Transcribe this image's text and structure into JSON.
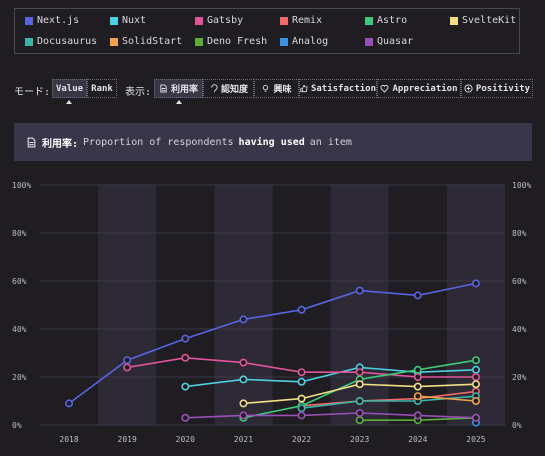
{
  "legend": [
    {
      "name": "Next.js",
      "color": "#5964e0"
    },
    {
      "name": "Nuxt",
      "color": "#4fd0e0"
    },
    {
      "name": "Gatsby",
      "color": "#e0559a"
    },
    {
      "name": "Remix",
      "color": "#ef6b6b"
    },
    {
      "name": "Astro",
      "color": "#3ec97b"
    },
    {
      "name": "SvelteKit",
      "color": "#f2df86"
    },
    {
      "name": "Docusaurus",
      "color": "#3bb5a8"
    },
    {
      "name": "SolidStart",
      "color": "#f0a348"
    },
    {
      "name": "Deno Fresh",
      "color": "#5cae3a"
    },
    {
      "name": "Analog",
      "color": "#3a8fe0"
    },
    {
      "name": "Quasar",
      "color": "#9a4fb5"
    }
  ],
  "controls": {
    "mode_label": "モード:",
    "value_label": "Value",
    "rank_label": "Rank",
    "display_label": "表示:",
    "usage_label": "利用率",
    "awareness_label": "認知度",
    "interest_label": "興味",
    "satisfaction_label": "Satisfaction",
    "appreciation_label": "Appreciation",
    "positivity_label": "Positivity"
  },
  "info": {
    "term": "利用率:",
    "text_before": "Proportion of respondents",
    "text_bold": "having used",
    "text_after": "an item"
  },
  "chart_data": {
    "type": "line",
    "x": [
      "2018",
      "2019",
      "2020",
      "2021",
      "2022",
      "2023",
      "2024",
      "2025"
    ],
    "y_ticks": [
      "100%",
      "80%",
      "60%",
      "40%",
      "20%",
      "0%"
    ],
    "ylim": [
      0,
      100
    ],
    "series": [
      {
        "name": "Next.js",
        "color": "#5964e0",
        "values": [
          9,
          27,
          36,
          44,
          48,
          56,
          54,
          59
        ]
      },
      {
        "name": "Nuxt",
        "color": "#4fd0e0",
        "values": [
          null,
          null,
          16,
          19,
          18,
          24,
          22,
          23
        ]
      },
      {
        "name": "Gatsby",
        "color": "#e0559a",
        "values": [
          null,
          24,
          28,
          26,
          22,
          22,
          20,
          20
        ]
      },
      {
        "name": "Remix",
        "color": "#ef6b6b",
        "values": [
          null,
          null,
          null,
          null,
          8,
          10,
          11,
          14
        ]
      },
      {
        "name": "Astro",
        "color": "#3ec97b",
        "values": [
          null,
          null,
          null,
          3,
          8,
          19,
          23,
          27
        ]
      },
      {
        "name": "SvelteKit",
        "color": "#f2df86",
        "values": [
          null,
          null,
          null,
          9,
          11,
          17,
          16,
          17
        ]
      },
      {
        "name": "Docusaurus",
        "color": "#3bb5a8",
        "values": [
          null,
          null,
          null,
          null,
          7,
          10,
          10,
          12
        ]
      },
      {
        "name": "SolidStart",
        "color": "#f0a348",
        "values": [
          null,
          null,
          null,
          null,
          null,
          null,
          12,
          10
        ]
      },
      {
        "name": "Deno Fresh",
        "color": "#5cae3a",
        "values": [
          null,
          null,
          null,
          null,
          null,
          2,
          2,
          3
        ]
      },
      {
        "name": "Analog",
        "color": "#3a8fe0",
        "values": [
          null,
          null,
          null,
          null,
          null,
          null,
          null,
          1
        ]
      },
      {
        "name": "Quasar",
        "color": "#9a4fb5",
        "values": [
          null,
          null,
          3,
          4,
          4,
          5,
          4,
          3
        ]
      }
    ]
  }
}
